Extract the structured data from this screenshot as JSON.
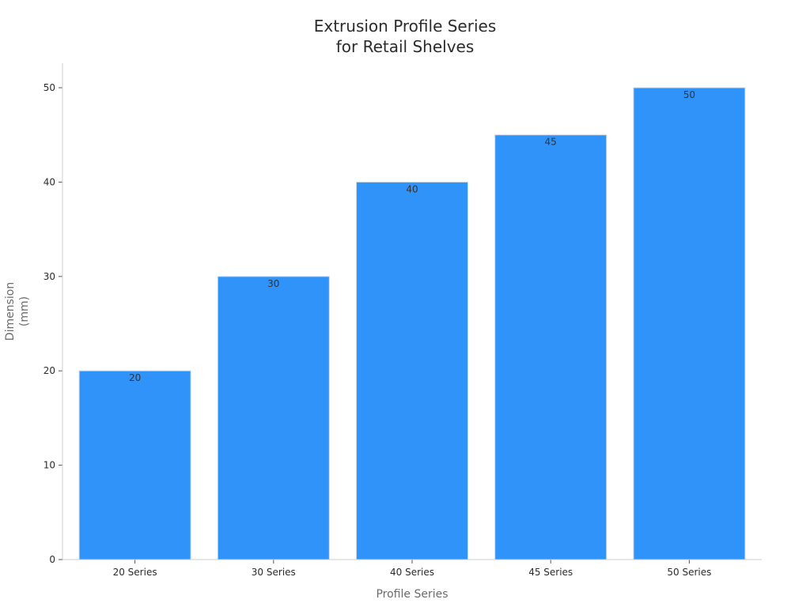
{
  "chart_data": {
    "type": "bar",
    "title_lines": [
      "Extrusion Profile Series",
      "for Retail Shelves"
    ],
    "xlabel": "Profile Series",
    "ylabel_lines": [
      "Dimension",
      "(mm)"
    ],
    "categories": [
      "20 Series",
      "30 Series",
      "40 Series",
      "45 Series",
      "50 Series"
    ],
    "values": [
      20,
      30,
      40,
      45,
      50
    ],
    "data_labels": [
      "20",
      "30",
      "40",
      "45",
      "50"
    ],
    "ylim": [
      0,
      52.5
    ],
    "yticks": [
      0,
      10,
      20,
      30,
      40,
      50
    ],
    "ytick_labels": [
      "0",
      "10",
      "20",
      "30",
      "40",
      "50"
    ],
    "grid": false,
    "bar_color": "#2f93fa"
  }
}
